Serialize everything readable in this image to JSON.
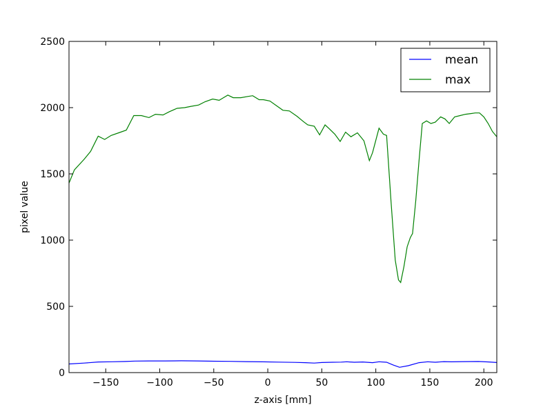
{
  "chart_data": {
    "type": "line",
    "title": "",
    "xlabel": "z-axis [mm]",
    "ylabel": "pixel value",
    "xlim": [
      -184,
      212
    ],
    "ylim": [
      0,
      2500
    ],
    "xticks": [
      -150,
      -100,
      -50,
      0,
      50,
      100,
      150,
      200
    ],
    "yticks": [
      0,
      500,
      1000,
      1500,
      2000,
      2500
    ],
    "grid": false,
    "legend_position": "top-right",
    "series": [
      {
        "name": "mean",
        "color": "#0000ff",
        "x": [
          -184,
          -170,
          -157,
          -144,
          -132,
          -123,
          -110,
          -95,
          -80,
          -65,
          -50,
          -35,
          -20,
          -5,
          10,
          25,
          35,
          43,
          50,
          60,
          68,
          73,
          80,
          88,
          97,
          103,
          110,
          116,
          122,
          130,
          140,
          148,
          155,
          163,
          170,
          180,
          195,
          205,
          212
        ],
        "y": [
          65,
          72,
          80,
          82,
          84,
          87,
          88,
          88,
          89,
          88,
          86,
          85,
          83,
          81,
          79,
          77,
          75,
          72,
          76,
          78,
          79,
          82,
          78,
          80,
          75,
          82,
          78,
          58,
          40,
          52,
          75,
          82,
          78,
          83,
          81,
          83,
          84,
          80,
          76
        ]
      },
      {
        "name": "max",
        "color": "#008000",
        "x": [
          -184,
          -179,
          -170,
          -164,
          -157,
          -151,
          -145,
          -138,
          -131,
          -124,
          -117,
          -110,
          -104,
          -97,
          -91,
          -84,
          -77,
          -71,
          -64,
          -58,
          -51,
          -45,
          -40,
          -37,
          -32,
          -25,
          -18,
          -14,
          -8,
          -4,
          2,
          8,
          14,
          20,
          27,
          33,
          37,
          43,
          48,
          53,
          57,
          62,
          67,
          72,
          77,
          83,
          89,
          94,
          97,
          103,
          107,
          110,
          114,
          118,
          121,
          123,
          126,
          129,
          132,
          134,
          137,
          140,
          143,
          147,
          151,
          155,
          160,
          164,
          168,
          173,
          178,
          183,
          188,
          192,
          196,
          200,
          204,
          208,
          212
        ],
        "y": [
          1430,
          1530,
          1610,
          1670,
          1785,
          1760,
          1790,
          1810,
          1830,
          1940,
          1940,
          1925,
          1950,
          1945,
          1970,
          1995,
          2000,
          2010,
          2020,
          2045,
          2065,
          2055,
          2080,
          2095,
          2075,
          2075,
          2085,
          2090,
          2060,
          2060,
          2050,
          2015,
          1980,
          1975,
          1935,
          1895,
          1870,
          1860,
          1795,
          1870,
          1840,
          1800,
          1745,
          1815,
          1780,
          1810,
          1750,
          1600,
          1660,
          1845,
          1800,
          1790,
          1300,
          850,
          700,
          680,
          800,
          950,
          1020,
          1050,
          1300,
          1600,
          1880,
          1900,
          1880,
          1890,
          1930,
          1915,
          1880,
          1930,
          1940,
          1950,
          1955,
          1960,
          1960,
          1930,
          1880,
          1820,
          1780
        ]
      }
    ]
  }
}
